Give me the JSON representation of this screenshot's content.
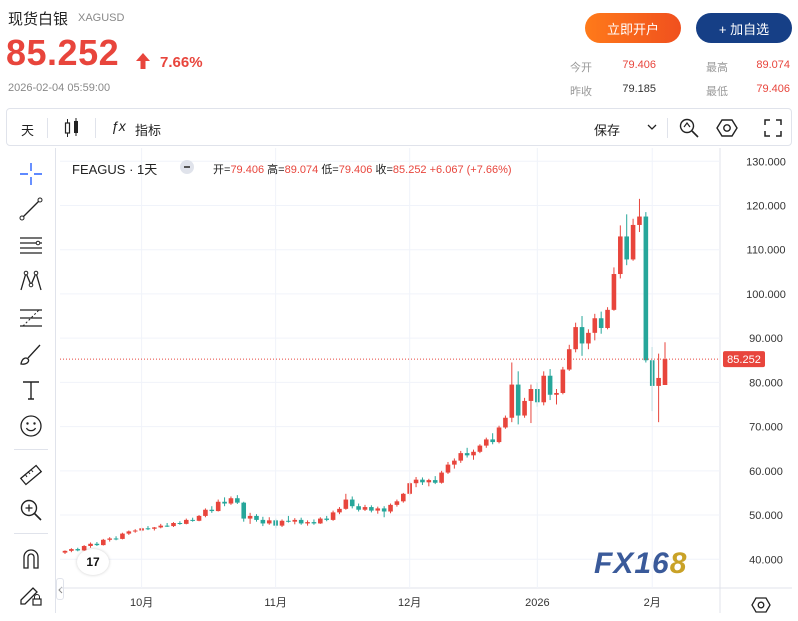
{
  "header": {
    "title": "现货白银",
    "symbol": "XAGUSD",
    "price": "85.252",
    "change_pct": "7.66%",
    "timestamp": "2026-02-04 05:59:00",
    "open_button": "立即开户",
    "fav_button": "+ 加自选",
    "stats": {
      "open_label": "今开",
      "open_value": "79.406",
      "high_label": "最高",
      "high_value": "89.074",
      "prev_label": "昨收",
      "prev_value": "79.185",
      "low_label": "最低",
      "low_value": "79.406"
    },
    "colors": {
      "up": "#e8453c",
      "down": "#26a69a",
      "brand_blue": "#163f86",
      "orange": "#f0501e"
    }
  },
  "toolbar": {
    "interval": "天",
    "indicators_label": "指标",
    "save_label": "保存"
  },
  "left_tools": [
    "crosshair-icon",
    "trendline-icon",
    "horizontal-lines-icon",
    "pattern-icon",
    "fib-icon",
    "brush-icon",
    "text-icon",
    "emoji-icon",
    "ruler-icon",
    "zoom-in-icon",
    "magnet-icon",
    "lock-pencil-icon"
  ],
  "legend": {
    "name": "FEAGUS · 1天",
    "open_label": "开=",
    "open": "79.406",
    "high_label": "高=",
    "high": "89.074",
    "low_label": "低=",
    "low": "79.406",
    "close_label": "收=",
    "close": "85.252",
    "change": "+6.067 (+7.66%)"
  },
  "watermark": {
    "prefix": "FX16",
    "suffix": "8"
  },
  "tv_logo": "17",
  "chart_data": {
    "type": "candlestick",
    "y_ticks": [
      "130.000",
      "120.000",
      "110.000",
      "100.000",
      "90.000",
      "80.000",
      "70.000",
      "60.000",
      "50.000",
      "40.000"
    ],
    "ylim": [
      33.5,
      133
    ],
    "x_ticks": [
      "10月",
      "11月",
      "12月",
      "2026",
      "2月"
    ],
    "last_price_label": "85.252",
    "last_price": 85.252,
    "grid": true,
    "candles": [
      [
        41.5,
        42.0,
        41.2,
        41.9
      ],
      [
        41.9,
        42.5,
        41.6,
        42.3
      ],
      [
        42.3,
        42.6,
        41.8,
        42.0
      ],
      [
        42.0,
        43.2,
        41.9,
        43.0
      ],
      [
        43.0,
        43.8,
        42.6,
        43.5
      ],
      [
        43.5,
        43.9,
        43.0,
        43.2
      ],
      [
        43.2,
        44.6,
        43.1,
        44.4
      ],
      [
        44.4,
        45.0,
        44.0,
        44.7
      ],
      [
        44.7,
        45.2,
        44.3,
        44.6
      ],
      [
        44.6,
        46.0,
        44.5,
        45.8
      ],
      [
        45.8,
        46.5,
        45.5,
        46.3
      ],
      [
        46.3,
        46.8,
        46.0,
        46.5
      ],
      [
        46.5,
        47.2,
        46.3,
        47.0
      ],
      [
        47.0,
        47.5,
        46.6,
        46.9
      ],
      [
        46.9,
        47.3,
        46.5,
        47.2
      ],
      [
        47.2,
        48.0,
        47.0,
        47.6
      ],
      [
        47.6,
        48.2,
        47.3,
        47.5
      ],
      [
        47.5,
        48.4,
        47.3,
        48.2
      ],
      [
        48.2,
        48.6,
        47.8,
        48.0
      ],
      [
        48.0,
        49.2,
        47.9,
        48.9
      ],
      [
        48.9,
        49.4,
        48.5,
        48.7
      ],
      [
        48.7,
        50.0,
        48.6,
        49.8
      ],
      [
        49.8,
        51.5,
        49.5,
        51.2
      ],
      [
        51.2,
        52.0,
        50.5,
        50.9
      ],
      [
        50.9,
        53.5,
        50.8,
        53.0
      ],
      [
        53.0,
        54.0,
        52.0,
        52.6
      ],
      [
        52.6,
        54.2,
        52.3,
        53.8
      ],
      [
        53.8,
        54.5,
        52.5,
        52.8
      ],
      [
        52.8,
        53.0,
        48.5,
        49.2
      ],
      [
        49.2,
        50.5,
        48.0,
        49.8
      ],
      [
        49.8,
        50.2,
        48.5,
        48.9
      ],
      [
        48.9,
        49.6,
        47.5,
        48.1
      ],
      [
        48.1,
        49.5,
        47.8,
        48.8
      ],
      [
        48.8,
        49.2,
        47.0,
        47.6
      ],
      [
        47.6,
        49.0,
        47.3,
        48.7
      ],
      [
        48.7,
        49.8,
        48.3,
        48.5
      ],
      [
        48.5,
        49.3,
        47.9,
        48.9
      ],
      [
        48.9,
        49.4,
        47.8,
        48.1
      ],
      [
        48.1,
        48.8,
        47.6,
        48.4
      ],
      [
        48.4,
        49.0,
        47.8,
        48.1
      ],
      [
        48.1,
        49.5,
        48.0,
        49.2
      ],
      [
        49.2,
        49.8,
        48.6,
        48.9
      ],
      [
        48.9,
        51.0,
        48.7,
        50.6
      ],
      [
        50.6,
        51.8,
        50.2,
        51.4
      ],
      [
        51.4,
        54.8,
        51.2,
        53.5
      ],
      [
        53.5,
        54.2,
        51.5,
        52.0
      ],
      [
        52.0,
        52.6,
        50.8,
        51.2
      ],
      [
        51.2,
        52.3,
        50.9,
        51.8
      ],
      [
        51.8,
        52.2,
        50.6,
        51.0
      ],
      [
        51.0,
        51.9,
        50.3,
        51.5
      ],
      [
        51.5,
        52.0,
        49.5,
        50.8
      ],
      [
        50.8,
        52.6,
        50.4,
        52.3
      ],
      [
        52.3,
        53.5,
        51.9,
        53.1
      ],
      [
        53.1,
        55.0,
        52.8,
        54.8
      ],
      [
        54.8,
        57.5,
        54.5,
        57.2
      ],
      [
        57.2,
        58.6,
        56.3,
        58.0
      ],
      [
        58.0,
        58.5,
        56.8,
        57.4
      ],
      [
        57.4,
        58.2,
        56.5,
        57.9
      ],
      [
        57.9,
        58.8,
        57.0,
        57.3
      ],
      [
        57.3,
        60.0,
        57.1,
        59.6
      ],
      [
        59.6,
        62.0,
        59.3,
        61.4
      ],
      [
        61.4,
        62.8,
        60.5,
        62.3
      ],
      [
        62.3,
        64.5,
        61.8,
        64.0
      ],
      [
        64.0,
        65.2,
        63.0,
        63.5
      ],
      [
        63.5,
        64.8,
        62.5,
        64.3
      ],
      [
        64.3,
        66.0,
        64.0,
        65.7
      ],
      [
        65.7,
        67.5,
        65.2,
        67.1
      ],
      [
        67.1,
        68.5,
        66.0,
        66.5
      ],
      [
        66.5,
        70.2,
        66.2,
        69.8
      ],
      [
        69.8,
        72.5,
        69.5,
        72.0
      ],
      [
        72.0,
        84.5,
        71.0,
        79.5
      ],
      [
        79.5,
        82.5,
        70.5,
        72.5
      ],
      [
        72.5,
        76.5,
        72.0,
        75.8
      ],
      [
        75.8,
        79.5,
        70.8,
        78.5
      ],
      [
        78.5,
        80.0,
        74.5,
        75.5
      ],
      [
        75.5,
        82.5,
        74.8,
        81.5
      ],
      [
        81.5,
        83.0,
        76.0,
        77.2
      ],
      [
        77.2,
        78.5,
        75.0,
        77.6
      ],
      [
        77.6,
        83.5,
        77.3,
        82.9
      ],
      [
        82.9,
        88.5,
        82.6,
        87.5
      ],
      [
        87.5,
        93.5,
        86.8,
        92.5
      ],
      [
        92.5,
        95.0,
        86.0,
        88.8
      ],
      [
        88.8,
        92.0,
        87.5,
        91.2
      ],
      [
        91.2,
        95.5,
        89.5,
        94.5
      ],
      [
        94.5,
        96.0,
        91.0,
        92.3
      ],
      [
        92.3,
        97.0,
        92.0,
        96.4
      ],
      [
        96.4,
        106.0,
        96.2,
        104.5
      ],
      [
        104.5,
        115.5,
        103.5,
        113.0
      ],
      [
        113.0,
        118.0,
        106.5,
        107.8
      ],
      [
        107.8,
        117.0,
        107.5,
        115.6
      ],
      [
        115.6,
        121.5,
        114.0,
        117.5
      ],
      [
        117.5,
        118.5,
        84.5,
        85.0
      ],
      [
        85.0,
        88.0,
        73.5,
        79.2
      ],
      [
        79.2,
        86.5,
        71.0,
        81.0
      ],
      [
        79.406,
        89.074,
        79.406,
        85.252
      ]
    ]
  }
}
